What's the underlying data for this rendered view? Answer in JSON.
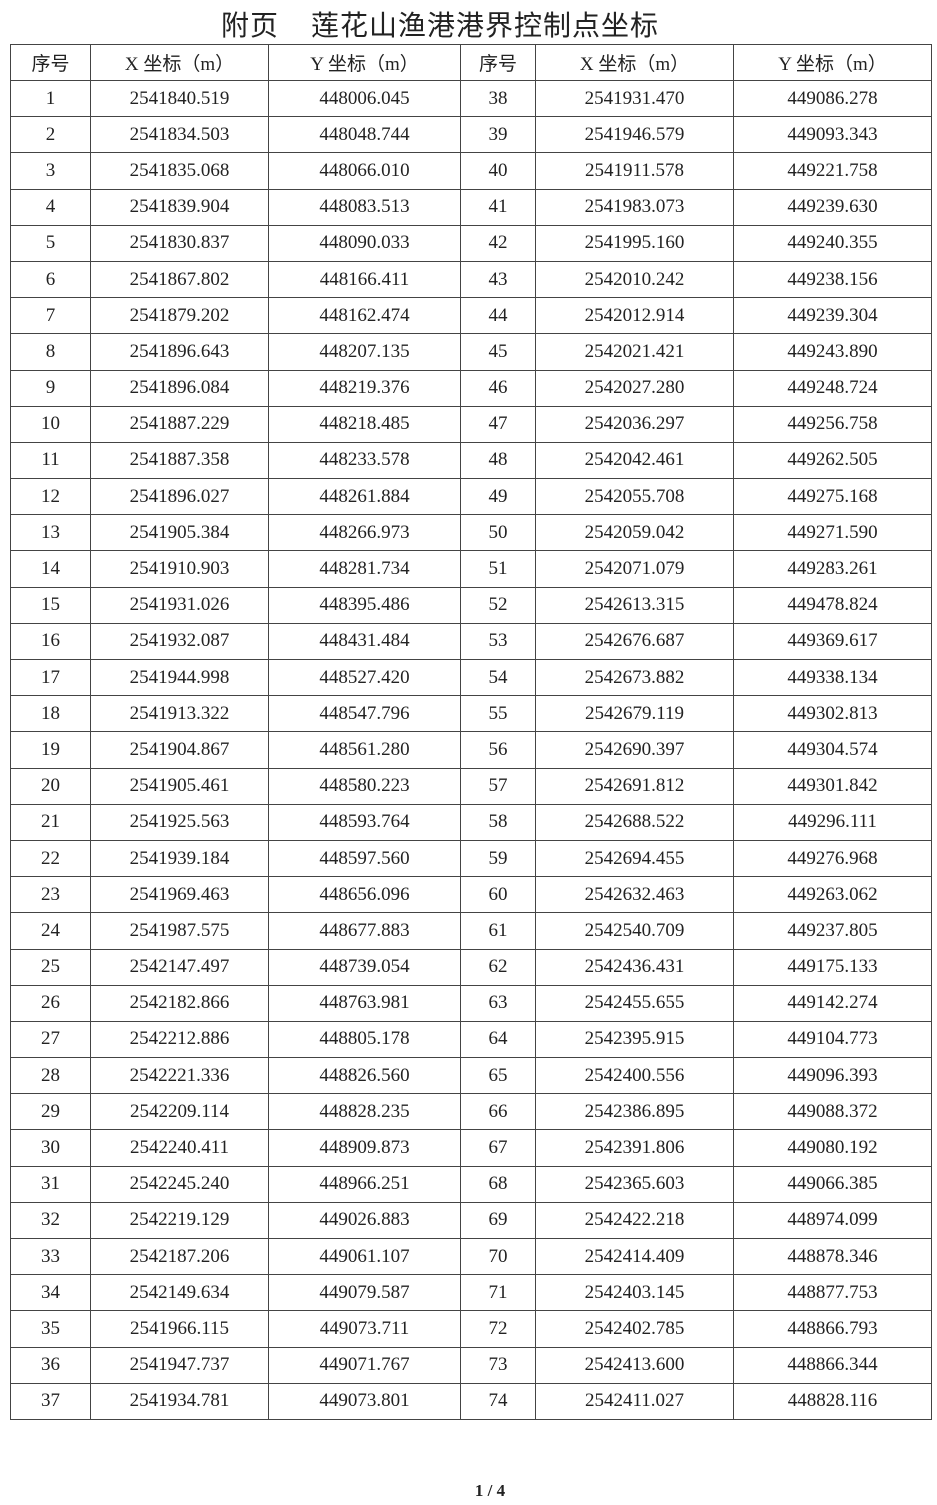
{
  "title": "附页    莲花山渔港港界控制点坐标",
  "headers": [
    "序号",
    "X 坐标（m）",
    "Y 坐标（m）",
    "序号",
    "X 坐标（m）",
    "Y 坐标（m）"
  ],
  "points": [
    [
      "1",
      "2541840.519",
      "448006.045"
    ],
    [
      "2",
      "2541834.503",
      "448048.744"
    ],
    [
      "3",
      "2541835.068",
      "448066.010"
    ],
    [
      "4",
      "2541839.904",
      "448083.513"
    ],
    [
      "5",
      "2541830.837",
      "448090.033"
    ],
    [
      "6",
      "2541867.802",
      "448166.411"
    ],
    [
      "7",
      "2541879.202",
      "448162.474"
    ],
    [
      "8",
      "2541896.643",
      "448207.135"
    ],
    [
      "9",
      "2541896.084",
      "448219.376"
    ],
    [
      "10",
      "2541887.229",
      "448218.485"
    ],
    [
      "11",
      "2541887.358",
      "448233.578"
    ],
    [
      "12",
      "2541896.027",
      "448261.884"
    ],
    [
      "13",
      "2541905.384",
      "448266.973"
    ],
    [
      "14",
      "2541910.903",
      "448281.734"
    ],
    [
      "15",
      "2541931.026",
      "448395.486"
    ],
    [
      "16",
      "2541932.087",
      "448431.484"
    ],
    [
      "17",
      "2541944.998",
      "448527.420"
    ],
    [
      "18",
      "2541913.322",
      "448547.796"
    ],
    [
      "19",
      "2541904.867",
      "448561.280"
    ],
    [
      "20",
      "2541905.461",
      "448580.223"
    ],
    [
      "21",
      "2541925.563",
      "448593.764"
    ],
    [
      "22",
      "2541939.184",
      "448597.560"
    ],
    [
      "23",
      "2541969.463",
      "448656.096"
    ],
    [
      "24",
      "2541987.575",
      "448677.883"
    ],
    [
      "25",
      "2542147.497",
      "448739.054"
    ],
    [
      "26",
      "2542182.866",
      "448763.981"
    ],
    [
      "27",
      "2542212.886",
      "448805.178"
    ],
    [
      "28",
      "2542221.336",
      "448826.560"
    ],
    [
      "29",
      "2542209.114",
      "448828.235"
    ],
    [
      "30",
      "2542240.411",
      "448909.873"
    ],
    [
      "31",
      "2542245.240",
      "448966.251"
    ],
    [
      "32",
      "2542219.129",
      "449026.883"
    ],
    [
      "33",
      "2542187.206",
      "449061.107"
    ],
    [
      "34",
      "2542149.634",
      "449079.587"
    ],
    [
      "35",
      "2541966.115",
      "449073.711"
    ],
    [
      "36",
      "2541947.737",
      "449071.767"
    ],
    [
      "37",
      "2541934.781",
      "449073.801"
    ],
    [
      "38",
      "2541931.470",
      "449086.278"
    ],
    [
      "39",
      "2541946.579",
      "449093.343"
    ],
    [
      "40",
      "2541911.578",
      "449221.758"
    ],
    [
      "41",
      "2541983.073",
      "449239.630"
    ],
    [
      "42",
      "2541995.160",
      "449240.355"
    ],
    [
      "43",
      "2542010.242",
      "449238.156"
    ],
    [
      "44",
      "2542012.914",
      "449239.304"
    ],
    [
      "45",
      "2542021.421",
      "449243.890"
    ],
    [
      "46",
      "2542027.280",
      "449248.724"
    ],
    [
      "47",
      "2542036.297",
      "449256.758"
    ],
    [
      "48",
      "2542042.461",
      "449262.505"
    ],
    [
      "49",
      "2542055.708",
      "449275.168"
    ],
    [
      "50",
      "2542059.042",
      "449271.590"
    ],
    [
      "51",
      "2542071.079",
      "449283.261"
    ],
    [
      "52",
      "2542613.315",
      "449478.824"
    ],
    [
      "53",
      "2542676.687",
      "449369.617"
    ],
    [
      "54",
      "2542673.882",
      "449338.134"
    ],
    [
      "55",
      "2542679.119",
      "449302.813"
    ],
    [
      "56",
      "2542690.397",
      "449304.574"
    ],
    [
      "57",
      "2542691.812",
      "449301.842"
    ],
    [
      "58",
      "2542688.522",
      "449296.111"
    ],
    [
      "59",
      "2542694.455",
      "449276.968"
    ],
    [
      "60",
      "2542632.463",
      "449263.062"
    ],
    [
      "61",
      "2542540.709",
      "449237.805"
    ],
    [
      "62",
      "2542436.431",
      "449175.133"
    ],
    [
      "63",
      "2542455.655",
      "449142.274"
    ],
    [
      "64",
      "2542395.915",
      "449104.773"
    ],
    [
      "65",
      "2542400.556",
      "449096.393"
    ],
    [
      "66",
      "2542386.895",
      "449088.372"
    ],
    [
      "67",
      "2542391.806",
      "449080.192"
    ],
    [
      "68",
      "2542365.603",
      "449066.385"
    ],
    [
      "69",
      "2542422.218",
      "448974.099"
    ],
    [
      "70",
      "2542414.409",
      "448878.346"
    ],
    [
      "71",
      "2542403.145",
      "448877.753"
    ],
    [
      "72",
      "2542402.785",
      "448866.793"
    ],
    [
      "73",
      "2542413.600",
      "448866.344"
    ],
    [
      "74",
      "2542411.027",
      "448828.116"
    ]
  ],
  "page_number": "1 / 4"
}
